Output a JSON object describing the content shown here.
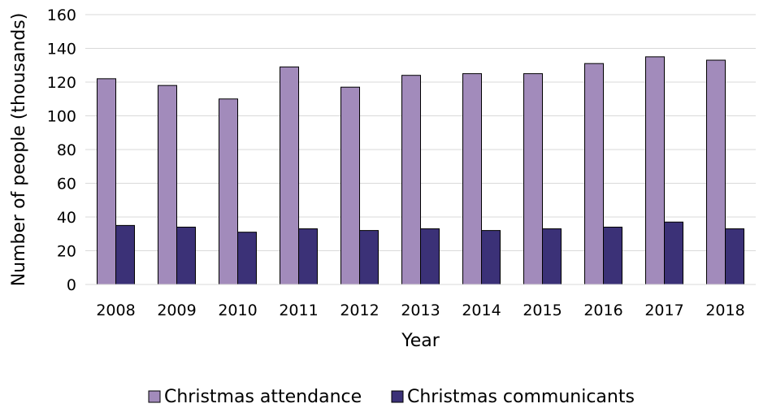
{
  "chart_data": {
    "type": "bar",
    "categories": [
      "2008",
      "2009",
      "2010",
      "2011",
      "2012",
      "2013",
      "2014",
      "2015",
      "2016",
      "2017",
      "2018"
    ],
    "series": [
      {
        "name": "Christmas attendance",
        "values": [
          122,
          118,
          110,
          129,
          117,
          124,
          125,
          125,
          131,
          135,
          133
        ],
        "color": "#a28bbb"
      },
      {
        "name": "Christmas communicants",
        "values": [
          35,
          34,
          31,
          33,
          32,
          33,
          32,
          33,
          34,
          37,
          33
        ],
        "color": "#3b3177"
      }
    ],
    "title": "",
    "xlabel": "Year",
    "ylabel": "Number of people (thousands)",
    "ylim": [
      0,
      160
    ],
    "yticks": [
      "0",
      "20",
      "40",
      "60",
      "80",
      "100",
      "120",
      "140",
      "160"
    ],
    "grid": true,
    "legend_position": "bottom"
  }
}
